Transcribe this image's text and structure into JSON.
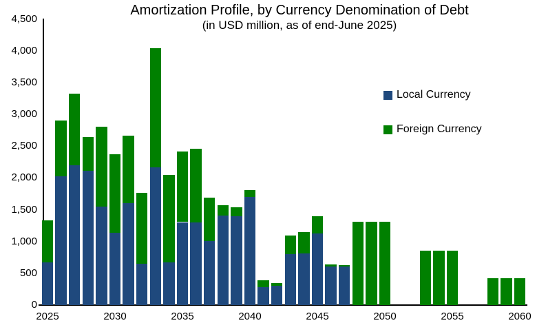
{
  "chart": {
    "title": "Amortization Profile, by Currency Denomination of Debt",
    "subtitle": "(in USD million, as of end-June 2025)",
    "legend": [
      {
        "label": "Local Currency",
        "color": "#1F497D"
      },
      {
        "label": "Foreign Currency",
        "color": "#008000"
      }
    ]
  },
  "chart_data": {
    "type": "bar",
    "stacked": true,
    "title": "Amortization Profile, by Currency Denomination of Debt",
    "subtitle": "(in USD million, as of end-June 2025)",
    "xlabel": "",
    "ylabel": "",
    "grid": false,
    "legend_position": "right-inside",
    "ylim": [
      0,
      4500
    ],
    "ytick_interval": 500,
    "ytick_labels": [
      "0",
      "500",
      "1,000",
      "1,500",
      "2,000",
      "2,500",
      "3,000",
      "3,500",
      "4,000",
      "4,500"
    ],
    "ytick_values": [
      0,
      500,
      1000,
      1500,
      2000,
      2500,
      3000,
      3500,
      4000,
      4500
    ],
    "xtick_labels": [
      "2025",
      "2030",
      "2035",
      "2040",
      "2045",
      "2050",
      "2055",
      "2060"
    ],
    "xtick_values": [
      2025,
      2030,
      2035,
      2040,
      2045,
      2050,
      2055,
      2060
    ],
    "categories": [
      2025,
      2026,
      2027,
      2028,
      2029,
      2030,
      2031,
      2032,
      2033,
      2034,
      2035,
      2036,
      2037,
      2038,
      2039,
      2040,
      2041,
      2042,
      2043,
      2044,
      2045,
      2046,
      2047,
      2048,
      2049,
      2050,
      2051,
      2052,
      2053,
      2054,
      2055,
      2056,
      2057,
      2058,
      2059,
      2060
    ],
    "series": [
      {
        "name": "Local Currency",
        "color": "#1F497D",
        "values": [
          670,
          2025,
          2200,
          2110,
          1545,
          1140,
          1605,
          655,
          2165,
          670,
          1305,
          1305,
          1005,
          1410,
          1400,
          1700,
          285,
          300,
          805,
          810,
          1130,
          610,
          605,
          0,
          0,
          0,
          0,
          0,
          0,
          0,
          0,
          0,
          0,
          0,
          0,
          0
        ]
      },
      {
        "name": "Foreign Currency",
        "color": "#008000",
        "values": [
          660,
          875,
          1130,
          530,
          1265,
          1235,
          1060,
          1115,
          1880,
          1375,
          1115,
          1155,
          680,
          160,
          135,
          110,
          100,
          50,
          290,
          340,
          270,
          25,
          25,
          1310,
          1310,
          1310,
          0,
          0,
          860,
          860,
          860,
          0,
          0,
          420,
          420,
          420
        ]
      }
    ]
  }
}
